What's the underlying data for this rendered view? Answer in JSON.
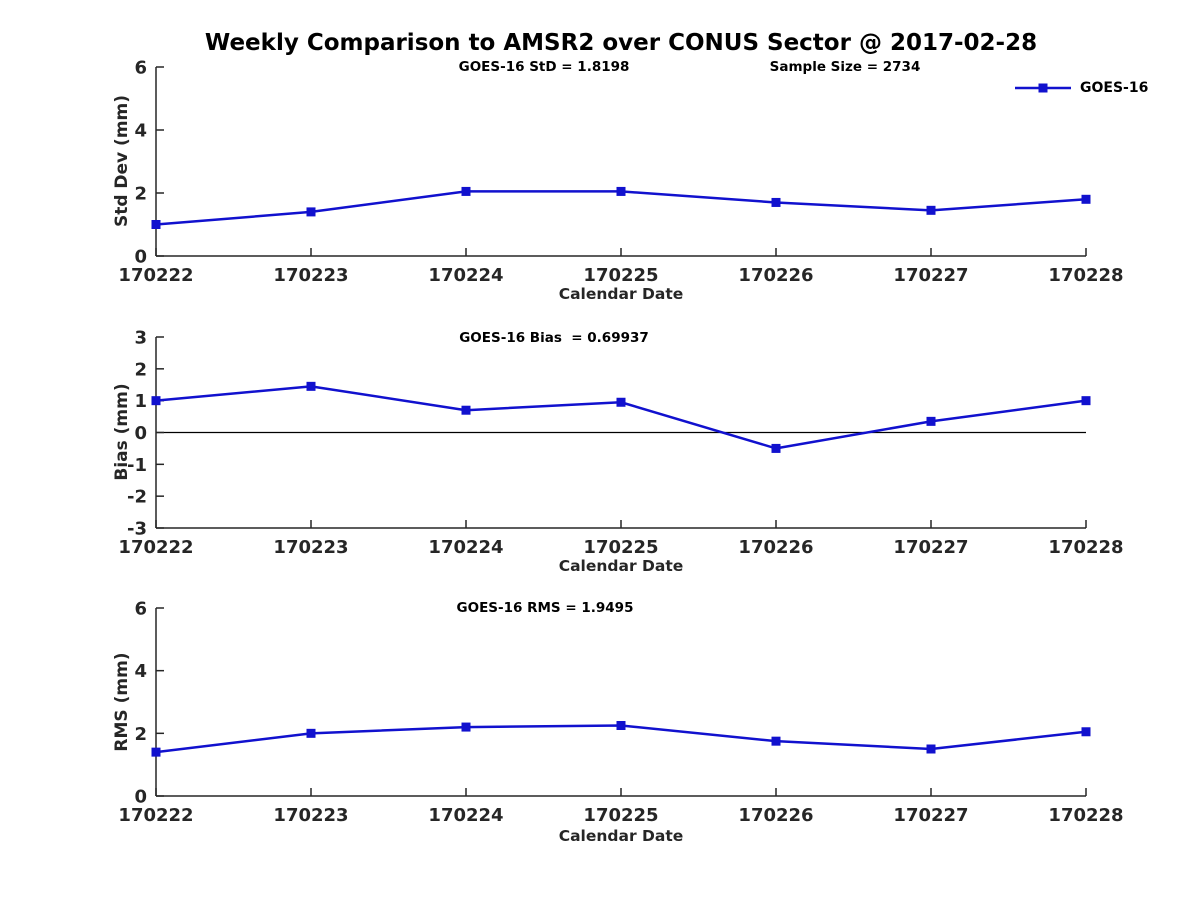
{
  "header": {
    "title": "Weekly Comparison to AMSR2 over CONUS Sector @ 2017-02-28"
  },
  "colors": {
    "series_blue": "#1111CE",
    "axis": "#262626",
    "tick_text": "#262626",
    "zero_line": "#000000",
    "title_text": "#000000"
  },
  "chart_data": [
    {
      "type": "line",
      "ylabel": "Std Dev (mm)",
      "xlabel": "Calendar Date",
      "categories": [
        "170222",
        "170223",
        "170224",
        "170225",
        "170226",
        "170227",
        "170228"
      ],
      "series": [
        {
          "name": "GOES-16",
          "values": [
            1.0,
            1.4,
            2.05,
            2.05,
            1.7,
            1.45,
            1.8
          ]
        }
      ],
      "ylim": [
        0,
        6
      ],
      "yticks": [
        "0",
        "2",
        "4",
        "6"
      ],
      "zero_line": false,
      "grid": false,
      "annotations": [
        {
          "text": "GOES-16 StD = 1.8198"
        },
        {
          "text": "Sample Size = 2734"
        }
      ],
      "legend": {
        "position": "top-right",
        "label": "GOES-16",
        "marker": "filled-square"
      }
    },
    {
      "type": "line",
      "ylabel": "Bias (mm)",
      "xlabel": "Calendar Date",
      "categories": [
        "170222",
        "170223",
        "170224",
        "170225",
        "170226",
        "170227",
        "170228"
      ],
      "series": [
        {
          "name": "GOES-16",
          "values": [
            1.0,
            1.45,
            0.7,
            0.95,
            -0.5,
            0.35,
            1.0
          ]
        }
      ],
      "ylim": [
        -3,
        3
      ],
      "yticks": [
        "-3",
        "-2",
        "-1",
        "0",
        "1",
        "2",
        "3"
      ],
      "zero_line": true,
      "grid": false,
      "annotations": [
        {
          "text": "GOES-16 Bias  = 0.69937"
        }
      ]
    },
    {
      "type": "line",
      "ylabel": "RMS (mm)",
      "xlabel": "Calendar Date",
      "categories": [
        "170222",
        "170223",
        "170224",
        "170225",
        "170226",
        "170227",
        "170228"
      ],
      "series": [
        {
          "name": "GOES-16",
          "values": [
            1.4,
            2.0,
            2.2,
            2.25,
            1.75,
            1.5,
            2.05
          ]
        }
      ],
      "ylim": [
        0,
        6
      ],
      "yticks": [
        "0",
        "2",
        "4",
        "6"
      ],
      "zero_line": false,
      "grid": false,
      "annotations": [
        {
          "text": "GOES-16 RMS = 1.9495"
        }
      ]
    }
  ]
}
